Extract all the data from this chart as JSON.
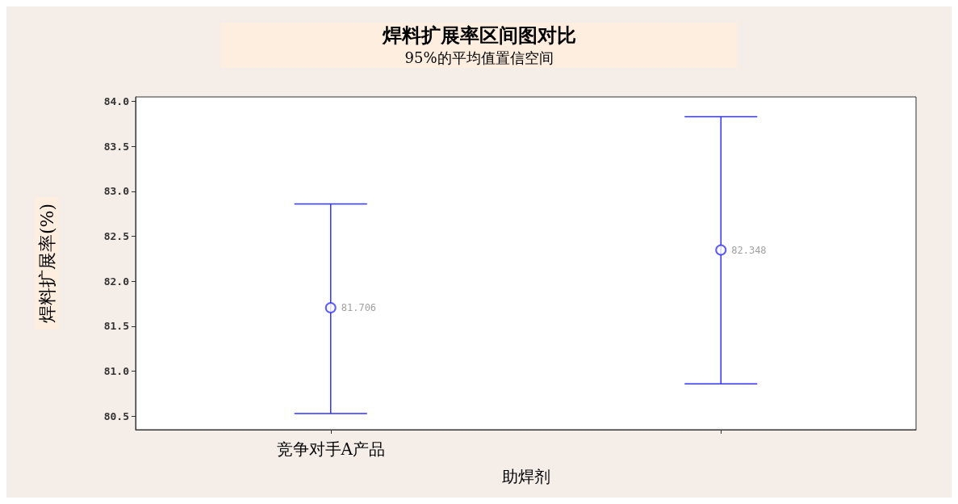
{
  "chart_data": {
    "type": "scatter",
    "title": "焊料扩展率区间图对比",
    "subtitle": "95%的平均值置信空间",
    "xlabel": "助焊剂",
    "ylabel": "焊料扩展率(%)",
    "categories": [
      "竞争对手A产品",
      null
    ],
    "values": [
      81.706,
      82.348
    ],
    "color": "#3333ff",
    "errors": [
      [
        80.53,
        82.86
      ],
      [
        80.86,
        83.83
      ]
    ],
    "data_labels": true,
    "marker": "circle",
    "ylim": [
      80.35,
      84.05
    ],
    "yticks": [
      {
        "value": 80.5,
        "label": "80.5"
      },
      {
        "value": 81,
        "label": "81.0"
      },
      {
        "value": 81.5,
        "label": "81.5"
      },
      {
        "value": 82,
        "label": "82.0"
      },
      {
        "value": 82.5,
        "label": "82.5"
      },
      {
        "value": 83,
        "label": "83.0"
      },
      {
        "value": 83.5,
        "label": "83.5"
      },
      {
        "value": 84,
        "label": "84.0"
      }
    ]
  }
}
